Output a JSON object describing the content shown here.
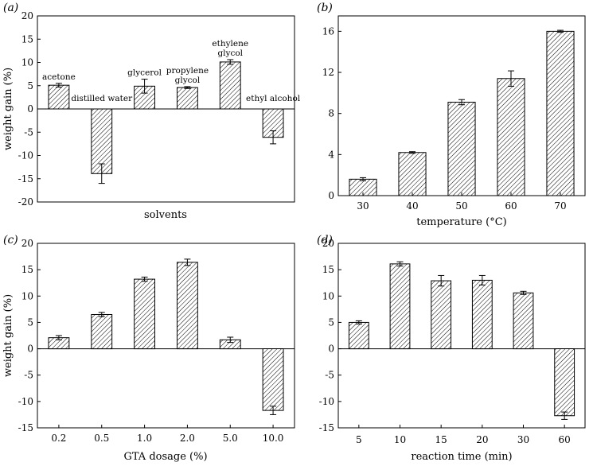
{
  "figure": {
    "panels": [
      "a",
      "b",
      "c",
      "d"
    ]
  },
  "chart_data": [
    {
      "type": "bar",
      "panel": "(a)",
      "categories": [
        "acetone",
        "distilled water",
        "glycerol",
        "propylene glycol",
        "ethylene glycol",
        "ethyl alcohol"
      ],
      "category_label_lines": [
        [
          "acetone"
        ],
        [
          "distilled water"
        ],
        [
          "glycerol"
        ],
        [
          "propylene",
          "glycol"
        ],
        [
          "ethylene",
          "glycol"
        ],
        [
          "ethyl alcohol"
        ]
      ],
      "values": [
        5.1,
        -13.9,
        4.9,
        4.6,
        10.1,
        -6.1
      ],
      "errors": [
        0.4,
        2.1,
        1.5,
        0.2,
        0.5,
        1.4
      ],
      "xlabel": "solvents",
      "ylabel": "weight gain (%)",
      "ylim": [
        -20,
        20
      ],
      "yticks": [
        "-20",
        "-15",
        "-10",
        "-5",
        "0",
        "5",
        "10",
        "15",
        "20"
      ],
      "labels_in_plot": true
    },
    {
      "type": "bar",
      "panel": "(b)",
      "categories": [
        "30",
        "40",
        "50",
        "60",
        "70"
      ],
      "values": [
        1.6,
        4.2,
        9.1,
        11.4,
        16.0
      ],
      "errors": [
        0.15,
        0.08,
        0.25,
        0.75,
        0.1
      ],
      "xlabel": "temperature (°C)",
      "ylabel": "",
      "ylim": [
        0,
        17.5
      ],
      "yticks": [
        "0",
        "4",
        "8",
        "12",
        "16"
      ]
    },
    {
      "type": "bar",
      "panel": "(c)",
      "categories": [
        "0.2",
        "0.5",
        "1.0",
        "2.0",
        "5.0",
        "10.0"
      ],
      "values": [
        2.1,
        6.5,
        13.2,
        16.4,
        1.7,
        -11.7
      ],
      "errors": [
        0.4,
        0.4,
        0.4,
        0.6,
        0.5,
        0.8
      ],
      "xlabel": "GTA dosage (%)",
      "ylabel": "weight gain (%)",
      "ylim": [
        -15,
        20
      ],
      "yticks": [
        "-15",
        "-10",
        "-5",
        "0",
        "5",
        "10",
        "15",
        "20"
      ]
    },
    {
      "type": "bar",
      "panel": "(d)",
      "categories": [
        "5",
        "10",
        "15",
        "20",
        "30",
        "60"
      ],
      "values": [
        5.0,
        16.1,
        12.9,
        13.0,
        10.6,
        -12.7
      ],
      "errors": [
        0.3,
        0.4,
        1.0,
        0.9,
        0.3,
        0.7
      ],
      "xlabel": "reaction time (min)",
      "ylabel": "",
      "ylim": [
        -15,
        20
      ],
      "yticks": [
        "-15",
        "-10",
        "-5",
        "0",
        "5",
        "10",
        "15",
        "20"
      ]
    }
  ]
}
